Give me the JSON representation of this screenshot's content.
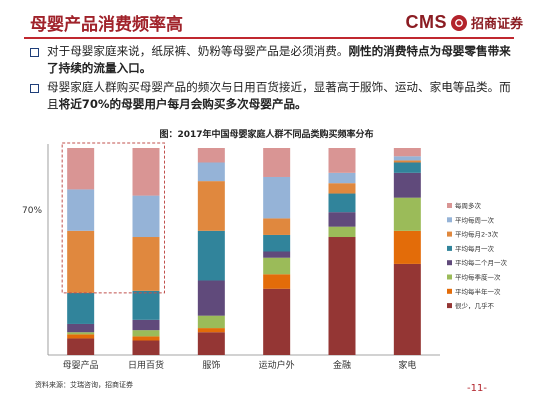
{
  "header": {
    "title": "母婴产品消费频率高",
    "logo_text": "CMS",
    "logo_cn": "招商证券"
  },
  "bullets": [
    {
      "normal": "对于母婴家庭来说，纸尿裤、奶粉等母婴产品是必须消费。",
      "bold": "刚性的消费特点为母婴零售带来了持续的流量入口。",
      "normal2": ""
    },
    {
      "normal": "母婴家庭人群购买母婴产品的频次与日用百货接近，显著高于服饰、运动、家电等品类。而且",
      "bold": "将近70%的母婴用户每月会购买多次母婴产品。",
      "normal2": ""
    }
  ],
  "source": "资料来源：艾瑞咨询，招商证券",
  "page_number": "-11-",
  "chart_data": {
    "type": "bar",
    "stacked": true,
    "title": "图：2017年中国母婴家庭人群不同品类购买频率分布",
    "categories": [
      "母婴产品",
      "日用百货",
      "服饰",
      "运动户外",
      "金融",
      "家电"
    ],
    "ylim": [
      0,
      100
    ],
    "annotation": {
      "text": "70%",
      "value": 70,
      "dashed_box_categories": [
        "母婴产品",
        "日用百货"
      ]
    },
    "series": [
      {
        "name": "很少，几乎不",
        "color": "#943634",
        "values": [
          8,
          7,
          11,
          32,
          57,
          44
        ]
      },
      {
        "name": "平均每半年一次",
        "color": "#e36c09",
        "values": [
          2,
          2,
          2,
          7,
          0,
          16
        ]
      },
      {
        "name": "平均每季度一次",
        "color": "#9bbb59",
        "values": [
          1,
          3,
          6,
          8,
          5,
          16
        ]
      },
      {
        "name": "平均每二个月一次",
        "color": "#604a7b",
        "values": [
          4,
          5,
          17,
          3,
          7,
          12
        ]
      },
      {
        "name": "平均每月一次",
        "color": "#31849b",
        "values": [
          15,
          14,
          24,
          8,
          9,
          5
        ]
      },
      {
        "name": "平均每月2-3次",
        "color": "#e0883e",
        "values": [
          30,
          26,
          24,
          8,
          5,
          1
        ]
      },
      {
        "name": "平均每周一次",
        "color": "#95b3d7",
        "values": [
          20,
          20,
          9,
          20,
          5,
          2
        ]
      },
      {
        "name": "每周多次",
        "color": "#d99594",
        "values": [
          20,
          23,
          7,
          14,
          12,
          4
        ]
      }
    ],
    "legend_order": [
      "每周多次",
      "平均每周一次",
      "平均每月2-3次",
      "平均每月一次",
      "平均每二个月一次",
      "平均每季度一次",
      "平均每半年一次",
      "很少，几乎不"
    ],
    "legend_position": "right",
    "grid": false
  }
}
